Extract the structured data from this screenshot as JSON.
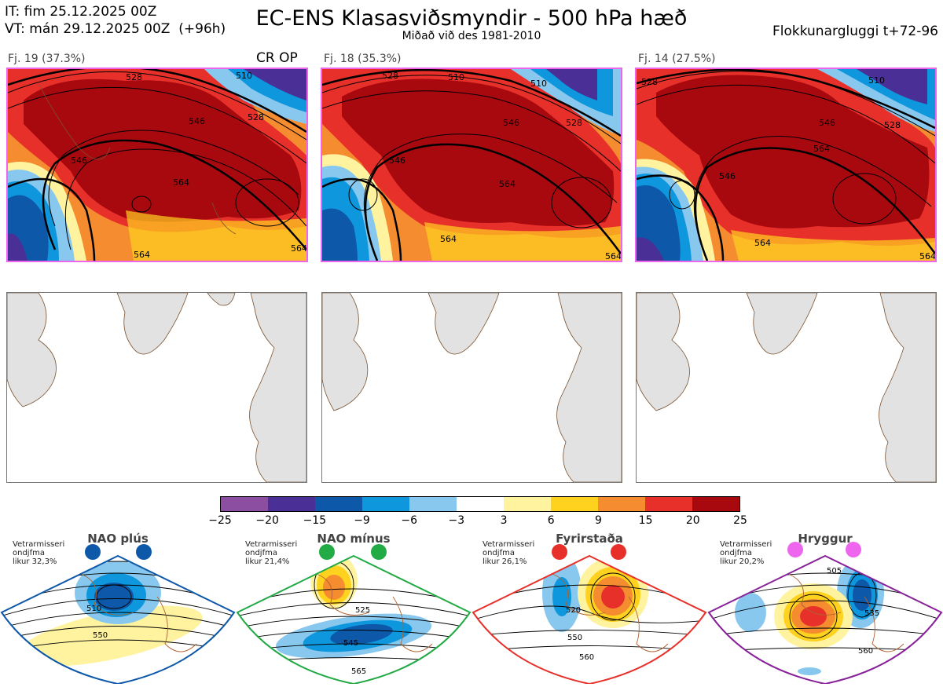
{
  "header": {
    "init_time": "IT: fim 25.12.2025 00Z",
    "valid_time": "VT: mán 29.12.2025 00Z  (+96h)",
    "title": "EC-ENS Klasasviðsmyndir - 500 hPa hæð",
    "subtitle": "Miðað við des 1981-2010",
    "window": "Flokkunargluggi t+72-96"
  },
  "clusters": [
    {
      "label": "Fj. 19 (37.3%)",
      "tag": "CR OP",
      "contours": [
        "528",
        "510",
        "546",
        "528",
        "546",
        "564",
        "564",
        "564"
      ]
    },
    {
      "label": "Fj. 18 (35.3%)",
      "tag": "",
      "contours": [
        "510",
        "528",
        "510",
        "546",
        "528",
        "546",
        "564",
        "564",
        "564"
      ]
    },
    {
      "label": "Fj. 14 (27.5%)",
      "tag": "",
      "contours": [
        "528",
        "510",
        "546",
        "528",
        "546",
        "564",
        "564",
        "564"
      ]
    }
  ],
  "colorbar": {
    "colors": [
      "#8c4ea1",
      "#4a2f97",
      "#0d58a8",
      "#0f97de",
      "#88c8ee",
      "#ffffff",
      "#fff3a0",
      "#ffd21f",
      "#f58c30",
      "#e8302a",
      "#a8090f"
    ],
    "ticks": [
      "−25",
      "−20",
      "−15",
      "−9",
      "−6",
      "−3",
      "3",
      "6",
      "9",
      "15",
      "20",
      "25"
    ]
  },
  "regimes": [
    {
      "name": "NAO plús",
      "info": "Vetrarmisseri\nondjfma\nlikur 32,3%",
      "color": "#0d58a8",
      "contours": [
        "510",
        "550"
      ]
    },
    {
      "name": "NAO mínus",
      "info": "Vetrarmisseri\nondjfma\nlikur 21,4%",
      "color": "#22aa44",
      "contours": [
        "525",
        "545",
        "565"
      ]
    },
    {
      "name": "Fyrirstaða",
      "info": "Vetrarmisseri\nondjfma\nlikur 26,1%",
      "color": "#e8302a",
      "contours": [
        "520",
        "550",
        "560"
      ]
    },
    {
      "name": "Hryggur",
      "info": "Vetrarmisseri\nondjfma\nlikur 20,2%",
      "color": "#ee66ee",
      "contours": [
        "505",
        "535",
        "560"
      ]
    }
  ]
}
